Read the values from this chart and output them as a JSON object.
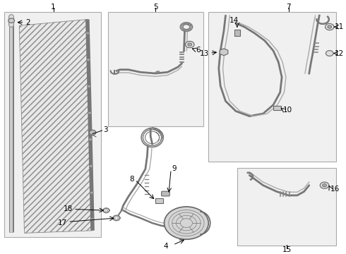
{
  "bg": "#ffffff",
  "box_fc": "#f0f0f0",
  "box_ec": "#aaaaaa",
  "lc": "#555555",
  "lc2": "#888888",
  "boxes": {
    "1": [
      0.012,
      0.06,
      0.295,
      0.955
    ],
    "5": [
      0.315,
      0.5,
      0.595,
      0.955
    ],
    "7": [
      0.61,
      0.36,
      0.985,
      0.955
    ],
    "15": [
      0.695,
      0.025,
      0.985,
      0.335
    ]
  },
  "label_positions": {
    "1": [
      0.155,
      0.972,
      "center"
    ],
    "2": [
      0.068,
      0.912,
      "left"
    ],
    "3": [
      0.298,
      0.485,
      "left"
    ],
    "4": [
      0.485,
      0.028,
      "center"
    ],
    "5": [
      0.455,
      0.972,
      "center"
    ],
    "6": [
      0.57,
      0.81,
      "left"
    ],
    "7": [
      0.845,
      0.972,
      "center"
    ],
    "8": [
      0.395,
      0.29,
      "right"
    ],
    "9": [
      0.5,
      0.33,
      "left"
    ],
    "10": [
      0.815,
      0.555,
      "left"
    ],
    "11": [
      0.975,
      0.88,
      "left"
    ],
    "12": [
      0.975,
      0.76,
      "left"
    ],
    "13": [
      0.615,
      0.785,
      "right"
    ],
    "14": [
      0.68,
      0.895,
      "center"
    ],
    "15": [
      0.84,
      0.01,
      "center"
    ],
    "16": [
      0.965,
      0.245,
      "left"
    ],
    "17": [
      0.2,
      0.115,
      "right"
    ],
    "18": [
      0.215,
      0.17,
      "right"
    ]
  }
}
